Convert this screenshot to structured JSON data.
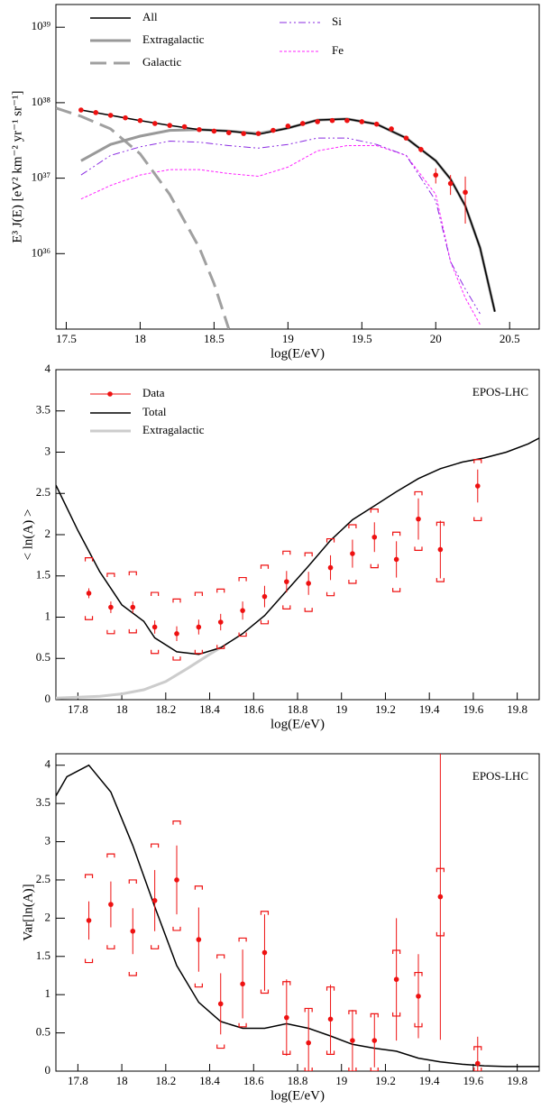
{
  "chart_data": [
    {
      "type": "line",
      "log_y": true,
      "xlabel": "log(E/eV)",
      "ylabel": "E³ J(E)  [eV² km⁻² yr⁻¹ sr⁻¹]",
      "xlim": [
        17.43,
        20.7
      ],
      "xticks": [
        17.5,
        18,
        18.5,
        19,
        19.5,
        20,
        20.5
      ],
      "ylim": [
        1e+35,
        2e+39
      ],
      "yticks": [
        {
          "value": 1e+36,
          "label": "10³⁶"
        },
        {
          "value": 1e+37,
          "label": "10³⁷"
        },
        {
          "value": 1e+38,
          "label": "10³⁸"
        },
        {
          "value": 1e+39,
          "label": "10³⁹"
        }
      ],
      "series": [
        {
          "name": "All",
          "color": "#000000",
          "style": "solid",
          "width": 1.5,
          "x": [
            17.6,
            17.8,
            18.0,
            18.2,
            18.4,
            18.6,
            18.8,
            19.0,
            19.2,
            19.4,
            19.6,
            19.8,
            20.0,
            20.1,
            20.2,
            20.3,
            20.4
          ],
          "values": [
            8e+37,
            6.8e+37,
            5.8e+37,
            5e+37,
            4.4e+37,
            4.2e+37,
            3.8e+37,
            4.6e+37,
            5.9e+37,
            6.1e+37,
            5.2e+37,
            3.4e+37,
            1.7e+37,
            9.7e+36,
            4.3e+36,
            1.2e+36,
            1.7e+35
          ]
        },
        {
          "name": "Extragalactic",
          "color": "#999999",
          "style": "solid",
          "width": 3,
          "x": [
            17.6,
            17.8,
            18.0,
            18.2,
            18.4,
            18.6,
            18.8,
            19.0,
            19.2,
            19.4,
            19.6,
            19.8,
            20.0,
            20.1,
            20.2,
            20.3,
            20.4
          ],
          "values": [
            1.7e+37,
            2.8e+37,
            3.6e+37,
            4.3e+37,
            4.4e+37,
            4.2e+37,
            3.9e+37,
            4.6e+37,
            5.9e+37,
            6.1e+37,
            5.2e+37,
            3.4e+37,
            1.7e+37,
            9.7e+36,
            4.3e+36,
            1.2e+36,
            1.7e+35
          ]
        },
        {
          "name": "Galactic",
          "color": "#a0a0a0",
          "style": "dashed",
          "width": 3,
          "x": [
            17.43,
            17.6,
            17.8,
            18.0,
            18.2,
            18.4,
            18.5,
            18.6
          ],
          "values": [
            8.5e+37,
            6.6e+37,
            4.5e+37,
            2.1e+37,
            6.1e+36,
            1.2e+36,
            4e+35,
            1e+35
          ]
        },
        {
          "name": "Si",
          "color": "#8a2be2",
          "style": "dashdot",
          "width": 1,
          "x": [
            17.6,
            17.8,
            18.0,
            18.2,
            18.4,
            18.6,
            18.8,
            19.0,
            19.2,
            19.4,
            19.6,
            19.8,
            20.0,
            20.1,
            20.2,
            20.3
          ],
          "values": [
            1.1e+37,
            2e+37,
            2.6e+37,
            3.1e+37,
            3e+37,
            2.7e+37,
            2.5e+37,
            2.8e+37,
            3.4e+37,
            3.4e+37,
            2.8e+37,
            2e+37,
            5e+36,
            7.8e+35,
            3.4e+35,
            1.6e+35
          ]
        },
        {
          "name": "Fe",
          "color": "#ff22ff",
          "style": "dotted",
          "width": 1,
          "x": [
            17.6,
            17.8,
            18.0,
            18.2,
            18.4,
            18.6,
            18.8,
            19.0,
            19.2,
            19.4,
            19.6,
            19.8,
            20.0,
            20.1,
            20.2,
            20.3
          ],
          "values": [
            5.3e+36,
            8e+36,
            1.1e+37,
            1.3e+37,
            1.3e+37,
            1.15e+37,
            1.06e+37,
            1.4e+37,
            2.3e+37,
            2.7e+37,
            2.7e+37,
            2e+37,
            6.1e+36,
            7.8e+35,
            2.6e+35,
            1.15e+35
          ]
        }
      ],
      "points": {
        "color": "#ee1111",
        "x": [
          17.6,
          17.7,
          17.8,
          17.9,
          18.0,
          18.1,
          18.2,
          18.3,
          18.4,
          18.5,
          18.6,
          18.7,
          18.8,
          18.9,
          19.0,
          19.1,
          19.2,
          19.3,
          19.4,
          19.5,
          19.6,
          19.7,
          19.8,
          19.9,
          20.0,
          20.1,
          20.2
        ],
        "values": [
          8e+37,
          7.4e+37,
          6.8e+37,
          6.3e+37,
          5.8e+37,
          5.3e+37,
          5e+37,
          4.8e+37,
          4.4e+37,
          4.2e+37,
          4e+37,
          3.9e+37,
          3.9e+37,
          4.3e+37,
          4.9e+37,
          5.3e+37,
          5.6e+37,
          5.8e+37,
          5.8e+37,
          5.6e+37,
          5.2e+37,
          4.5e+37,
          3.4e+37,
          2.4e+37,
          1.1e+37,
          8.5e+36,
          6.5e+36
        ],
        "errors": [
          0,
          0,
          0,
          0,
          0,
          0,
          0,
          0,
          0,
          0,
          0,
          0,
          0,
          0,
          0,
          0,
          0,
          0,
          0,
          0,
          0,
          0,
          2e+36,
          2e+36,
          2.5e+36,
          2.5e+36,
          4e+36
        ]
      }
    },
    {
      "type": "line",
      "xlabel": "log(E/eV)",
      "ylabel": "< ln(A) >",
      "annotation": "EPOS-LHC",
      "xlim": [
        17.7,
        19.9
      ],
      "xticks": [
        17.8,
        18,
        18.2,
        18.4,
        18.6,
        18.8,
        19,
        19.2,
        19.4,
        19.6,
        19.8
      ],
      "ylim": [
        0,
        4
      ],
      "yticks": [
        0,
        0.5,
        1,
        1.5,
        2,
        2.5,
        3,
        3.5,
        4
      ],
      "points": {
        "name": "Data",
        "color": "#ee1111",
        "x": [
          17.85,
          17.95,
          18.05,
          18.15,
          18.25,
          18.35,
          18.45,
          18.55,
          18.65,
          18.75,
          18.85,
          18.95,
          19.05,
          19.15,
          19.25,
          19.35,
          19.45,
          19.62
        ],
        "values": [
          1.29,
          1.12,
          1.12,
          0.88,
          0.8,
          0.88,
          0.94,
          1.08,
          1.25,
          1.43,
          1.41,
          1.6,
          1.77,
          1.97,
          1.7,
          2.19,
          1.82,
          2.59
        ],
        "errors": [
          0.06,
          0.07,
          0.07,
          0.08,
          0.09,
          0.09,
          0.1,
          0.11,
          0.13,
          0.13,
          0.14,
          0.15,
          0.17,
          0.18,
          0.22,
          0.25,
          0.35,
          0.2
        ],
        "sys_high": [
          1.72,
          1.53,
          1.55,
          1.3,
          1.22,
          1.3,
          1.34,
          1.48,
          1.63,
          1.8,
          1.78,
          1.95,
          2.12,
          2.31,
          2.03,
          2.52,
          2.15,
          2.91
        ],
        "sys_low": [
          0.97,
          0.8,
          0.81,
          0.56,
          0.48,
          0.56,
          0.62,
          0.77,
          0.92,
          1.1,
          1.07,
          1.26,
          1.41,
          1.6,
          1.31,
          1.81,
          1.43,
          2.17
        ]
      },
      "series": [
        {
          "name": "Total",
          "color": "#000000",
          "style": "solid",
          "width": 1.5,
          "x": [
            17.7,
            17.8,
            17.9,
            18.0,
            18.1,
            18.15,
            18.25,
            18.35,
            18.45,
            18.55,
            18.65,
            18.75,
            18.85,
            18.95,
            19.05,
            19.15,
            19.25,
            19.35,
            19.45,
            19.55,
            19.65,
            19.75,
            19.85,
            19.9
          ],
          "values": [
            2.6,
            2.05,
            1.55,
            1.15,
            0.95,
            0.75,
            0.58,
            0.55,
            0.63,
            0.8,
            1.02,
            1.32,
            1.62,
            1.93,
            2.18,
            2.35,
            2.52,
            2.68,
            2.8,
            2.88,
            2.93,
            3.0,
            3.1,
            3.17
          ]
        },
        {
          "name": "Extragalactic",
          "color": "#cccccc",
          "style": "solid",
          "width": 3,
          "x": [
            17.7,
            17.8,
            17.9,
            18.0,
            18.1,
            18.2,
            18.3,
            18.4,
            18.45
          ],
          "values": [
            0.02,
            0.03,
            0.04,
            0.07,
            0.12,
            0.22,
            0.38,
            0.55,
            0.63
          ]
        }
      ]
    },
    {
      "type": "line",
      "xlabel": "log(E/eV)",
      "ylabel": "Var[ln(A)]",
      "annotation": "EPOS-LHC",
      "xlim": [
        17.7,
        19.9
      ],
      "xticks": [
        17.8,
        18,
        18.2,
        18.4,
        18.6,
        18.8,
        19,
        19.2,
        19.4,
        19.6,
        19.8
      ],
      "ylim": [
        0,
        4.15
      ],
      "yticks": [
        0,
        0.5,
        1,
        1.5,
        2,
        2.5,
        3,
        3.5,
        4
      ],
      "points": {
        "color": "#ee1111",
        "x": [
          17.85,
          17.95,
          18.05,
          18.15,
          18.25,
          18.35,
          18.45,
          18.55,
          18.65,
          18.75,
          18.85,
          18.95,
          19.05,
          19.15,
          19.25,
          19.35,
          19.45,
          19.62
        ],
        "values": [
          1.97,
          2.18,
          1.83,
          2.23,
          2.5,
          1.72,
          0.88,
          1.14,
          1.55,
          0.7,
          0.37,
          0.68,
          0.4,
          0.4,
          1.2,
          0.98,
          2.28,
          0.1
        ],
        "errors": [
          0.25,
          0.3,
          0.3,
          0.4,
          0.45,
          0.42,
          0.4,
          0.45,
          0.5,
          0.5,
          0.45,
          0.45,
          0.4,
          0.35,
          0.8,
          0.55,
          1.87,
          0.35
        ],
        "sys_high": [
          2.57,
          2.84,
          2.5,
          2.97,
          3.27,
          2.42,
          1.52,
          1.74,
          2.09,
          1.17,
          0.82,
          1.1,
          0.79,
          0.75,
          1.58,
          1.29,
          2.65,
          0.32
        ],
        "sys_low": [
          1.42,
          1.6,
          1.25,
          1.6,
          1.84,
          1.1,
          0.3,
          0.58,
          1.02,
          0.22,
          0,
          0.22,
          0,
          0,
          0.72,
          0.58,
          1.77,
          0
        ]
      },
      "series": [
        {
          "color": "#000000",
          "style": "solid",
          "width": 1.5,
          "x": [
            17.7,
            17.75,
            17.85,
            17.95,
            18.05,
            18.15,
            18.25,
            18.35,
            18.45,
            18.55,
            18.65,
            18.75,
            18.85,
            18.95,
            19.05,
            19.15,
            19.25,
            19.35,
            19.45,
            19.55,
            19.65,
            19.75,
            19.9
          ],
          "values": [
            3.6,
            3.85,
            4.0,
            3.65,
            2.95,
            2.15,
            1.38,
            0.9,
            0.65,
            0.56,
            0.56,
            0.62,
            0.56,
            0.46,
            0.35,
            0.3,
            0.26,
            0.17,
            0.12,
            0.09,
            0.07,
            0.06,
            0.06
          ]
        }
      ]
    }
  ]
}
